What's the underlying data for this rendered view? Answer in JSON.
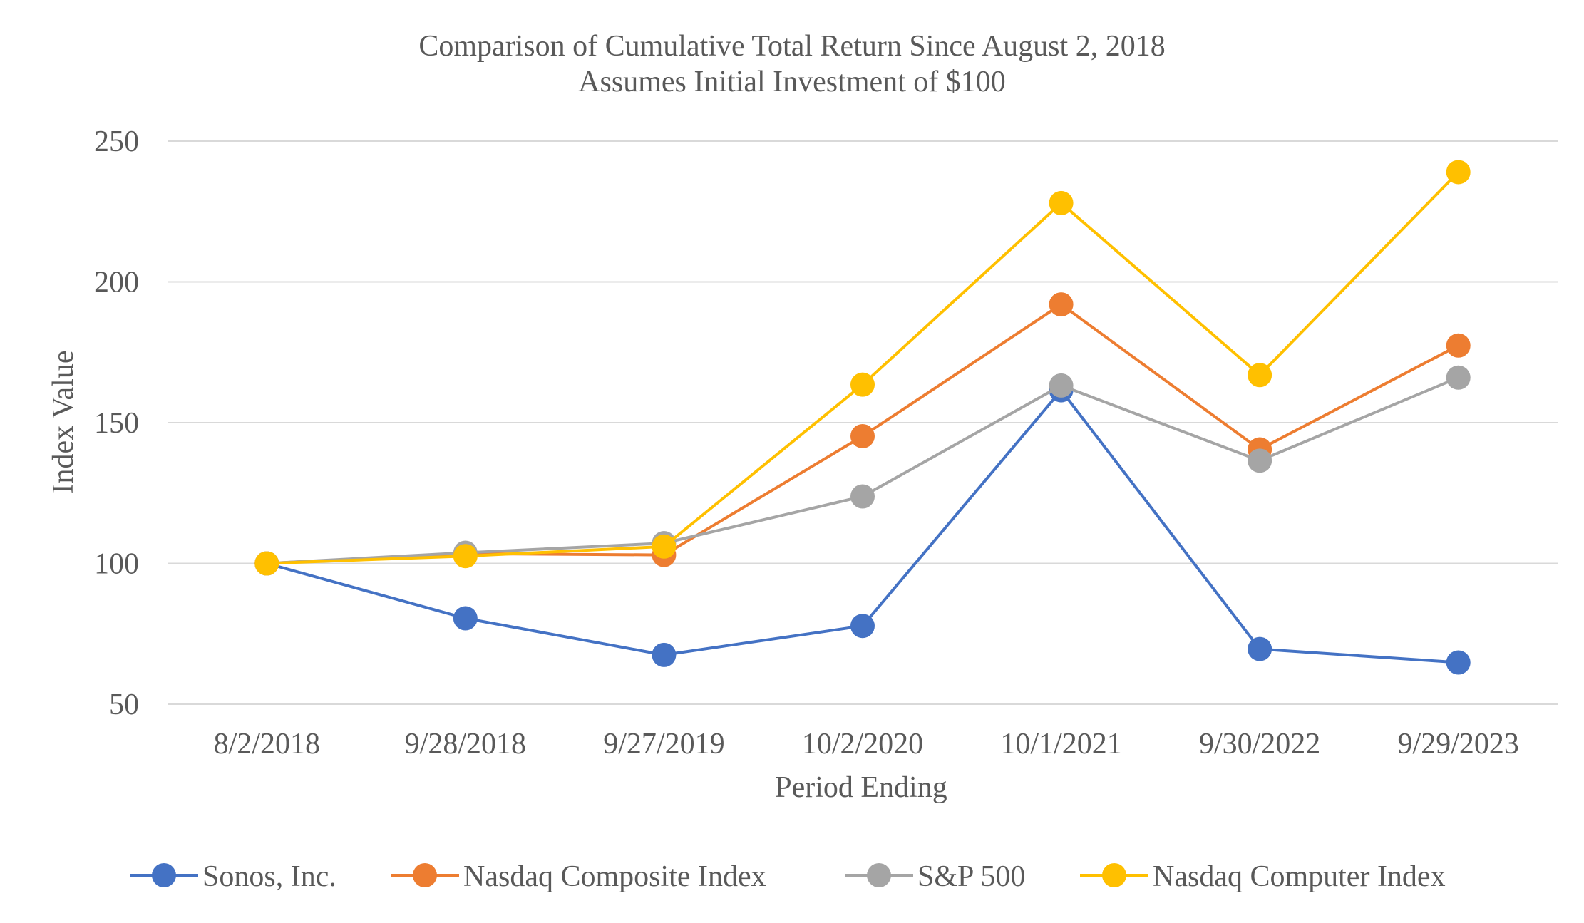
{
  "chart_data": {
    "type": "line",
    "title": "Comparison of Cumulative Total Return Since August 2, 2018",
    "subtitle": "Assumes Initial Investment of $100",
    "xlabel": "Period Ending",
    "ylabel": "Index Value",
    "categories": [
      "8/2/2018",
      "9/28/2018",
      "9/27/2019",
      "10/2/2020",
      "10/1/2021",
      "9/30/2022",
      "9/29/2023"
    ],
    "ylim": [
      50,
      250
    ],
    "yticks": [
      "50",
      "100",
      "150",
      "200",
      "250"
    ],
    "grid": true,
    "legend_position": "bottom",
    "series": [
      {
        "name": "Sonos, Inc.",
        "color": "#4472C4",
        "values": [
          100,
          80.5,
          67.5,
          77.8,
          161.5,
          69.6,
          64.8
        ]
      },
      {
        "name": "Nasdaq Composite Index",
        "color": "#ED7D31",
        "values": [
          100,
          103.5,
          103.0,
          145.2,
          192.0,
          140.5,
          177.4
        ]
      },
      {
        "name": "S&P 500",
        "color": "#A5A5A5",
        "values": [
          100,
          103.8,
          107.2,
          123.8,
          163.2,
          136.5,
          166.0
        ]
      },
      {
        "name": "Nasdaq Computer Index",
        "color": "#FFC000",
        "values": [
          100,
          102.6,
          106.0,
          163.5,
          228.0,
          166.9,
          239.0
        ]
      }
    ]
  }
}
